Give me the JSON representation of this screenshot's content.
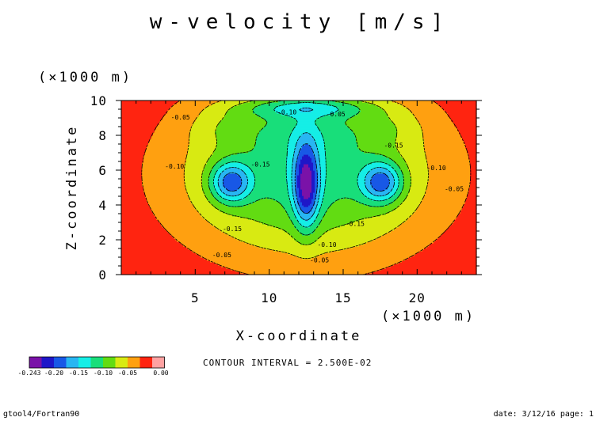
{
  "window": {
    "title": "w-velocity [m/s]"
  },
  "chart_data": {
    "type": "heatmap",
    "title": "w-velocity [m/s]",
    "xlabel": "X-coordinate",
    "ylabel": "Z-coordinate",
    "x_scale_label": "(×1000 m)",
    "y_scale_label": "(×1000 m)",
    "xlim": [
      0,
      24
    ],
    "ylim": [
      0,
      10
    ],
    "x_ticks": [
      "5",
      "10",
      "15",
      "20"
    ],
    "x_tick_values": [
      5,
      10,
      15,
      20
    ],
    "y_ticks": [
      "0",
      "2",
      "4",
      "6",
      "8",
      "10"
    ],
    "y_tick_values": [
      0,
      2,
      4,
      6,
      8,
      10
    ],
    "contour_interval_text": "CONTOUR INTERVAL = 2.500E-02",
    "colorbar": {
      "colors": [
        "#7a12a8",
        "#1e16c8",
        "#1858e6",
        "#28b6f2",
        "#15eee6",
        "#18de7a",
        "#62dc12",
        "#d8ea12",
        "#ffa010",
        "#ff2410",
        "#ffa2a2"
      ],
      "labels": [
        "-0.243",
        "-0.20",
        "-0.15",
        "-0.10",
        "-0.05",
        "0.00"
      ]
    },
    "contour_labels": [
      {
        "text": "-0.05",
        "x": 4.0,
        "y": 8.9
      },
      {
        "text": "-0.10",
        "x": 11.2,
        "y": 9.2
      },
      {
        "text": "-0.05",
        "x": 14.5,
        "y": 9.1
      },
      {
        "text": "-0.15",
        "x": 18.4,
        "y": 7.3
      },
      {
        "text": "-0.15",
        "x": 9.4,
        "y": 6.2
      },
      {
        "text": "-0.10",
        "x": 3.6,
        "y": 6.1
      },
      {
        "text": "-0.10",
        "x": 21.3,
        "y": 6.0
      },
      {
        "text": "-0.05",
        "x": 22.5,
        "y": 4.8
      },
      {
        "text": "-0.15",
        "x": 7.5,
        "y": 2.5
      },
      {
        "text": "-0.15",
        "x": 15.8,
        "y": 2.8
      },
      {
        "text": "-0.10",
        "x": 13.9,
        "y": 1.6
      },
      {
        "text": "-0.05",
        "x": 6.8,
        "y": 1.0
      },
      {
        "text": "-0.05",
        "x": 13.4,
        "y": 0.7
      }
    ]
  },
  "footer": {
    "left": "gtool4/Fortran90",
    "right": "date: 3/12/16 page: 1"
  }
}
